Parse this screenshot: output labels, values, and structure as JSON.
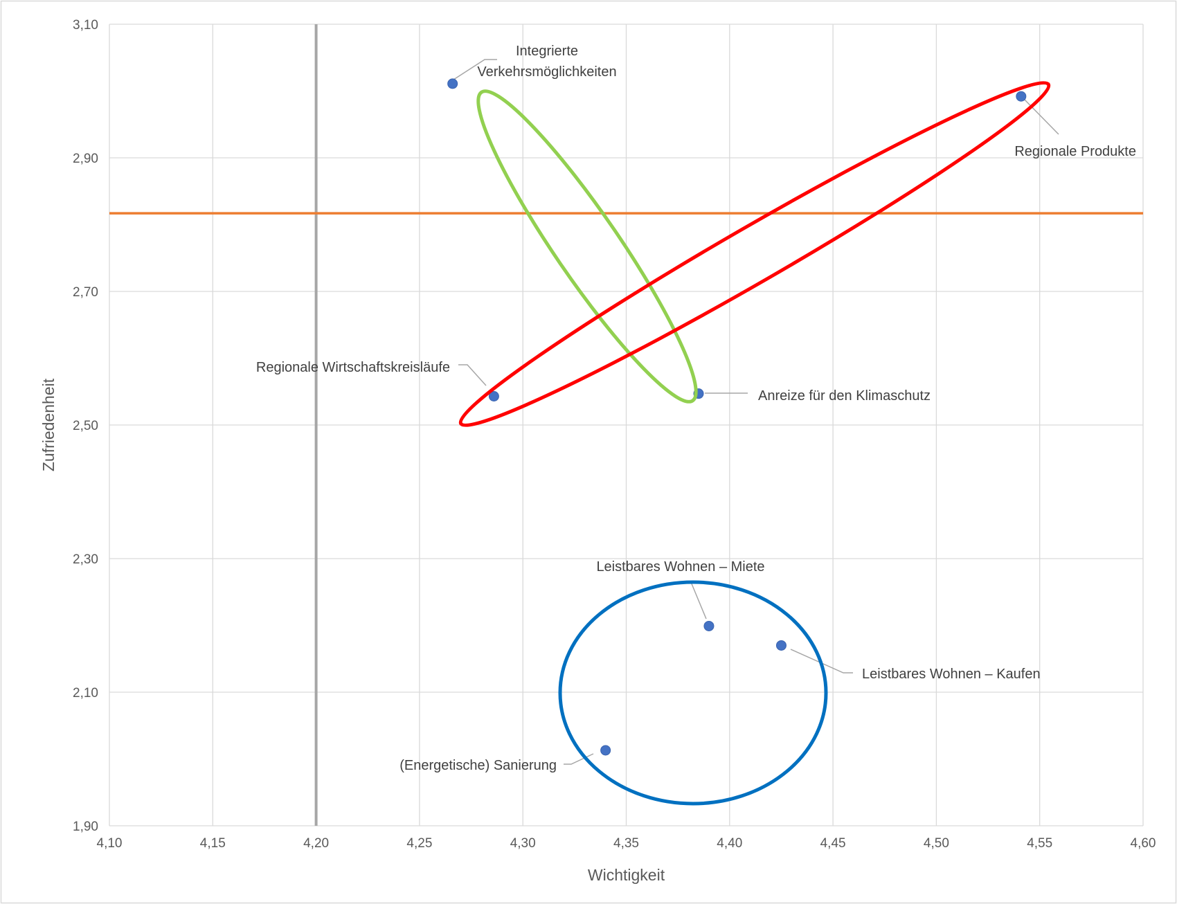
{
  "chart_data": {
    "type": "scatter",
    "title": "",
    "xlabel": "Wichtigkeit",
    "ylabel": "Zufriedenheit",
    "xlim": [
      4.1,
      4.6
    ],
    "ylim": [
      1.9,
      3.1
    ],
    "x_ticks": [
      "4,10",
      "4,15",
      "4,20",
      "4,25",
      "4,30",
      "4,35",
      "4,40",
      "4,45",
      "4,50",
      "4,55",
      "4,60"
    ],
    "y_ticks": [
      "1,90",
      "2,10",
      "2,30",
      "2,50",
      "2,70",
      "2,90",
      "3,10"
    ],
    "grid": true,
    "points": [
      {
        "label": "Integrierte\nVerkehrsmöglichkeiten",
        "x": 4.266,
        "y": 3.011
      },
      {
        "label": "Regionale Produkte",
        "x": 4.541,
        "y": 2.992
      },
      {
        "label": "Regionale Wirtschaftskreisläufe",
        "x": 4.286,
        "y": 2.543
      },
      {
        "label": "Anreize für den Klimaschutz",
        "x": 4.385,
        "y": 2.547
      },
      {
        "label": "Leistbares Wohnen – Miete",
        "x": 4.39,
        "y": 2.199
      },
      {
        "label": "Leistbares Wohnen – Kaufen",
        "x": 4.425,
        "y": 2.17
      },
      {
        "label": "(Energetische) Sanierung",
        "x": 4.34,
        "y": 2.013
      }
    ],
    "reference_lines": [
      {
        "orientation": "vertical",
        "value": 4.2,
        "color": "#a6a6a6"
      },
      {
        "orientation": "horizontal",
        "value": 2.817,
        "color": "#ed7d31"
      }
    ],
    "marker_color": "#4472c4",
    "highlight_ellipses": [
      {
        "color": "#92d050"
      },
      {
        "color": "#ff0000"
      },
      {
        "color": "#0070c0"
      }
    ]
  }
}
